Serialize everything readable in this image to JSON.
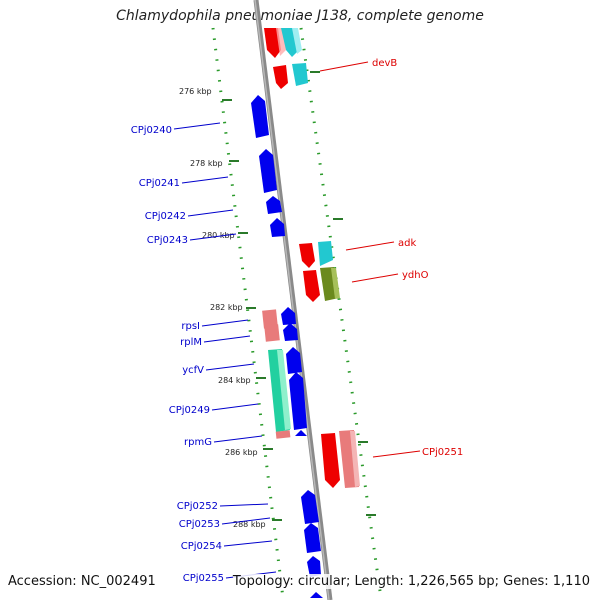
{
  "title": "Chlamydophila pneumoniae J138, complete genome",
  "footer": {
    "accession": "Accession: NC_002491",
    "summary": "Topology: circular; Length: 1,226,565 bp; Genes: 1,110"
  },
  "colors": {
    "forward_cds": "#0000ee",
    "reverse_cds": "#ee0000",
    "rrna_pink": "#e87b7b",
    "cyan_feature": "#22c8d0",
    "olive_feature": "#6b8a1e",
    "green_feature": "#22d0a0",
    "backbone": "#888888",
    "tick": "#2a7a2a"
  },
  "scale_labels": [
    "276 kbp",
    "278 kbp",
    "280 kbp",
    "282 kbp",
    "284 kbp",
    "286 kbp",
    "288 kbp"
  ],
  "gene_labels_left": [
    "CPj0240",
    "CPj0241",
    "CPj0242",
    "CPj0243",
    "rpsI",
    "rplM",
    "ycfV",
    "CPj0249",
    "rpmG",
    "CPj0252",
    "CPj0253",
    "CPj0254",
    "CPj0255"
  ],
  "gene_labels_right": [
    "devB",
    "adk",
    "ydhO",
    "CPj0251"
  ]
}
